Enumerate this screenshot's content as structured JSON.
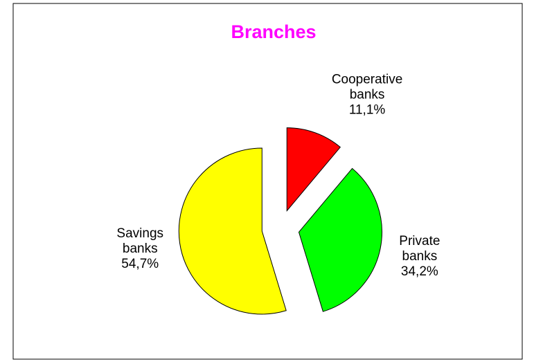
{
  "chart_data": {
    "type": "pie",
    "title": "Branches",
    "categories": [
      "Cooperative banks",
      "Private banks",
      "Savings banks"
    ],
    "values": [
      11.1,
      34.2,
      54.7
    ],
    "value_labels": [
      "11,1%",
      "34,2%",
      "54,7%"
    ],
    "colors": [
      "#ff0000",
      "#00ff00",
      "#ffff00"
    ]
  }
}
